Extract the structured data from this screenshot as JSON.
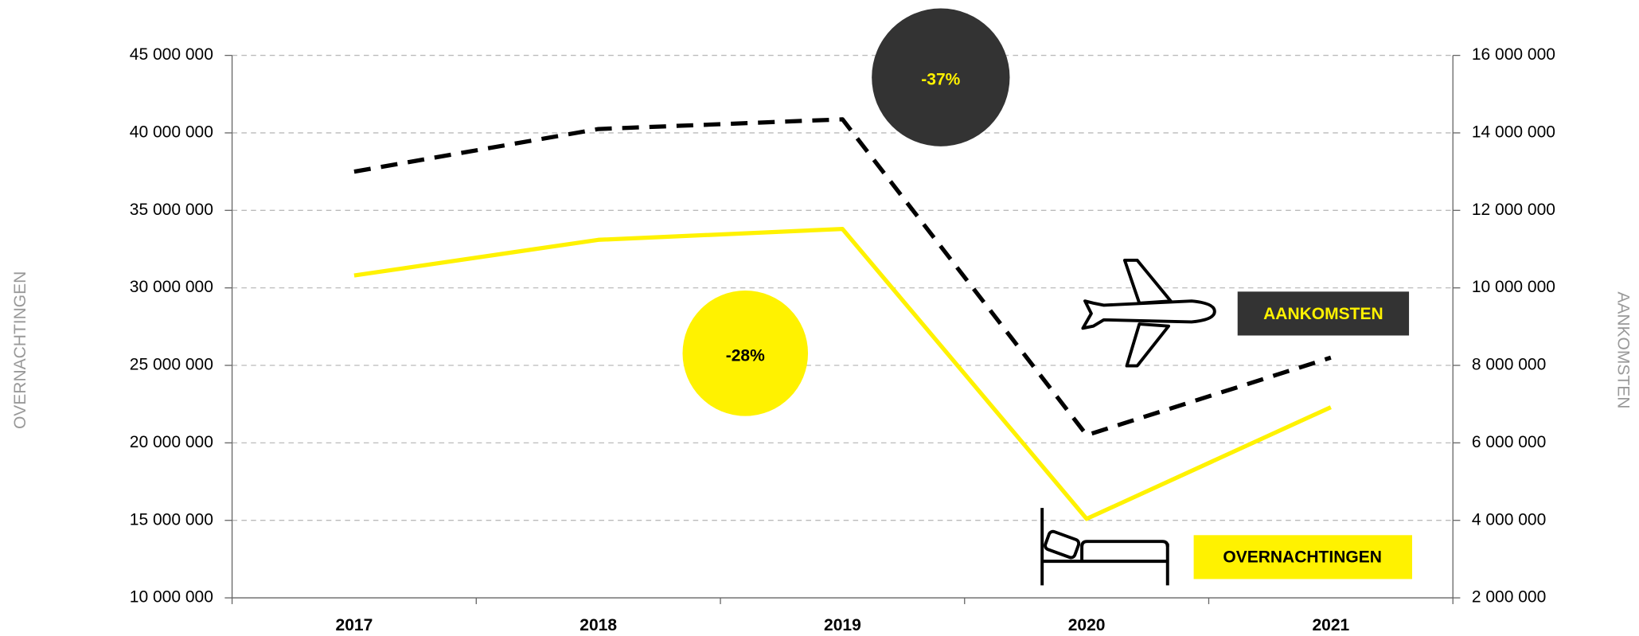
{
  "chart_data": {
    "type": "line",
    "y_label": "OVERNACHTINGEN",
    "y2_label": "AANKOMSTEN",
    "categories": [
      "2017",
      "2018",
      "2019",
      "2020",
      "2021"
    ],
    "series": [
      {
        "name": "OVERNACHTINGEN",
        "color": "#fff200",
        "dash": false,
        "values": [
          30800000,
          33100000,
          33800000,
          15100000,
          22300000
        ]
      },
      {
        "name": "AANKOMSTEN",
        "color": "#000000",
        "dash": true,
        "axis": "y2",
        "values": [
          13000000,
          14100000,
          14350000,
          6200000,
          8200000
        ]
      }
    ],
    "annotations": [
      "-37%",
      "-28%"
    ],
    "ylim": [
      10000000,
      45000000
    ],
    "yticks": [
      {
        "value": 10000000,
        "label": "10 000 000"
      },
      {
        "value": 15000000,
        "label": "15 000 000"
      },
      {
        "value": 20000000,
        "label": "20 000 000"
      },
      {
        "value": 25000000,
        "label": "25 000 000"
      },
      {
        "value": 30000000,
        "label": "30 000 000"
      },
      {
        "value": 35000000,
        "label": "35 000 000"
      },
      {
        "value": 40000000,
        "label": "40 000 000"
      },
      {
        "value": 45000000,
        "label": "45 000 000"
      }
    ],
    "y2lim": [
      2000000,
      16000000
    ],
    "y2ticks": [
      {
        "value": 2000000,
        "label": "2 000 000"
      },
      {
        "value": 4000000,
        "label": "4 000 000"
      },
      {
        "value": 6000000,
        "label": "6 000 000"
      },
      {
        "value": 8000000,
        "label": "8 000 000"
      },
      {
        "value": 10000000,
        "label": "10 000 000"
      },
      {
        "value": 12000000,
        "label": "12 000 000"
      },
      {
        "value": 14000000,
        "label": "14 000 000"
      },
      {
        "value": 16000000,
        "label": "16 000 000"
      }
    ],
    "grid": true
  }
}
